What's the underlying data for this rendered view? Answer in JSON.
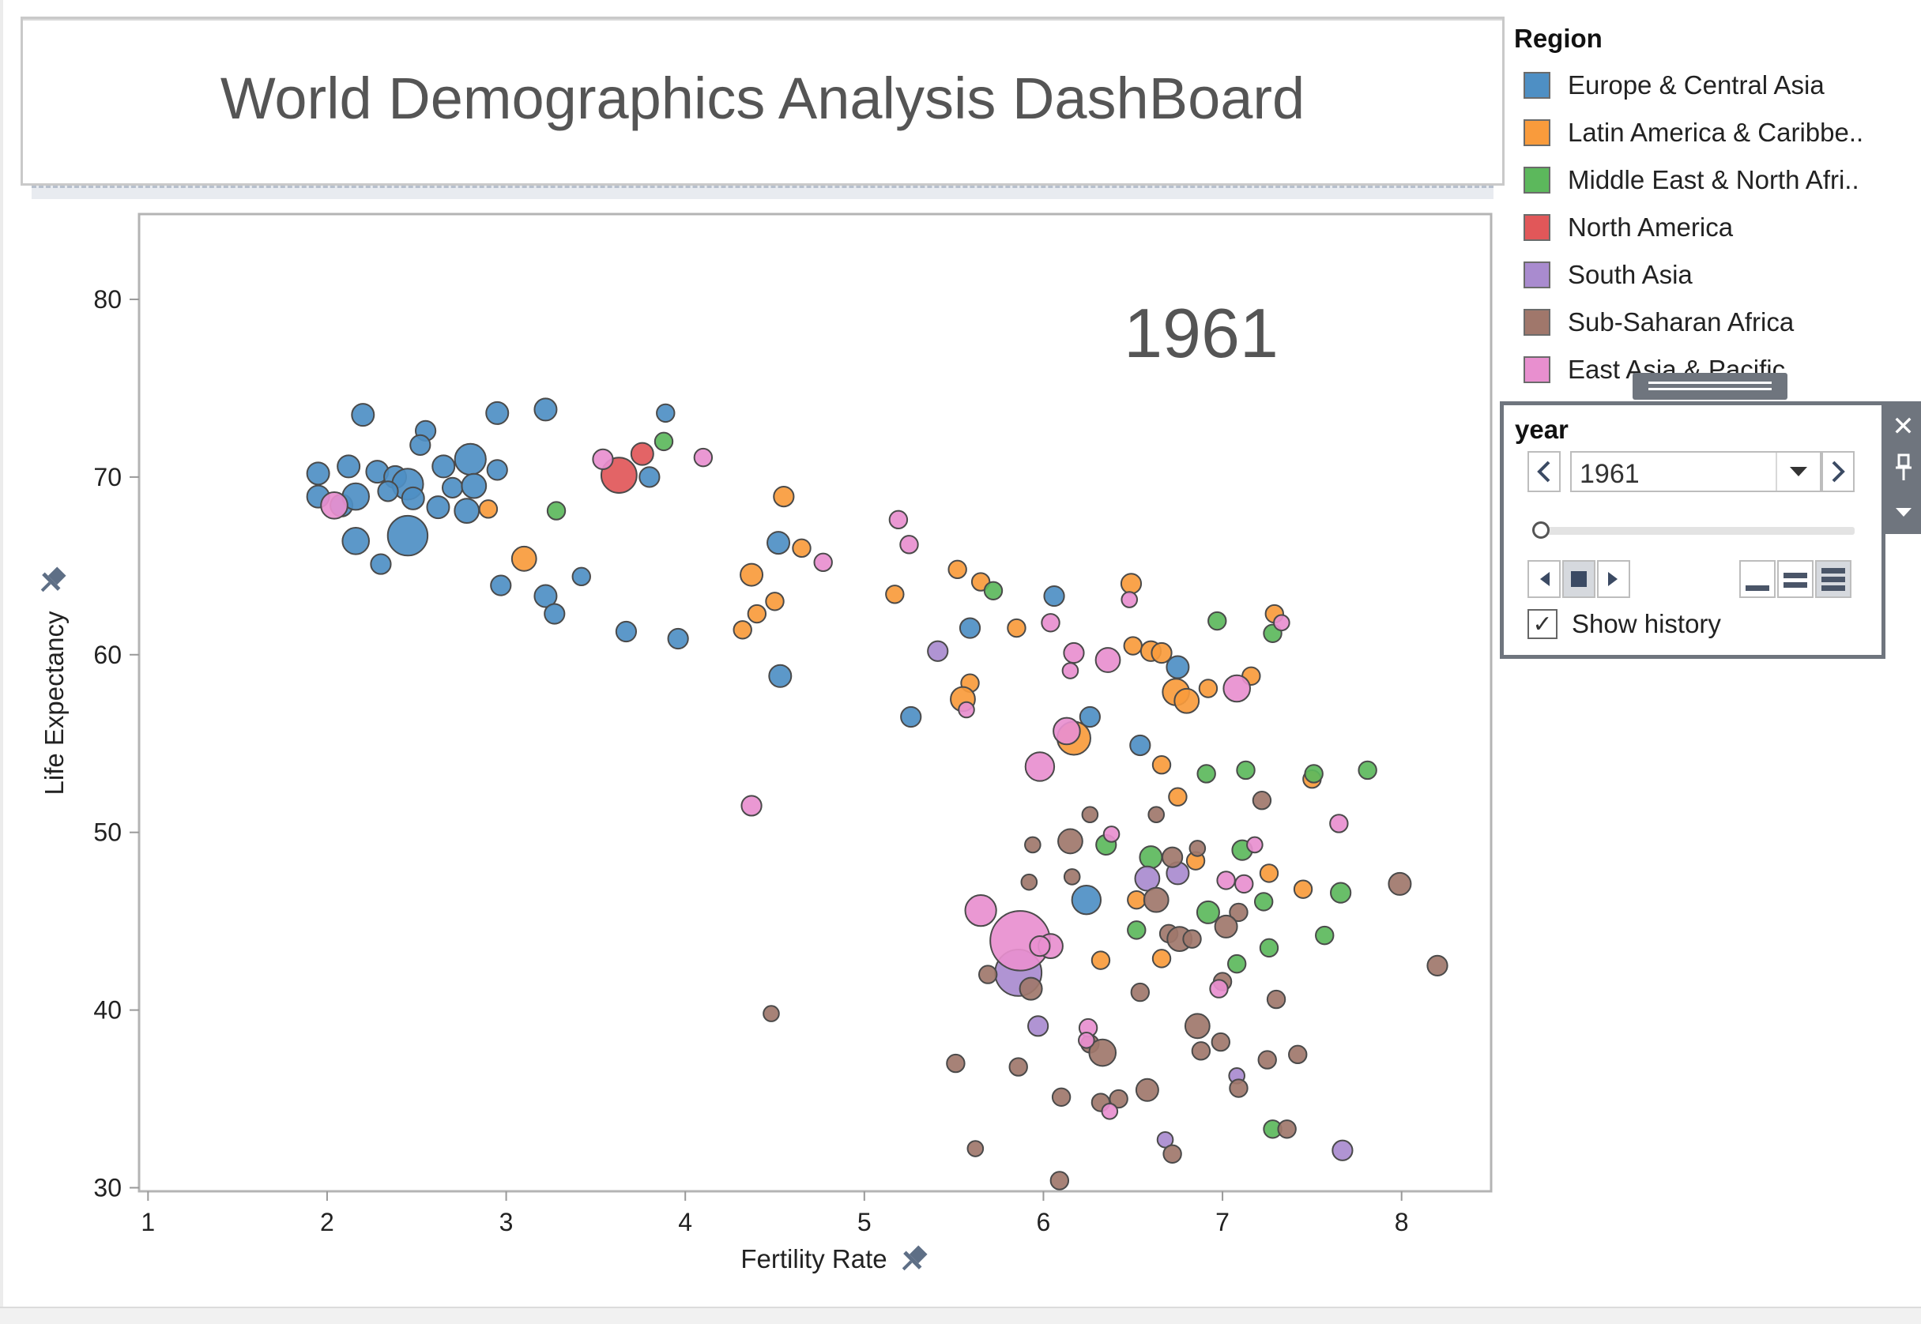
{
  "dashboard": {
    "title": "World Demographics Analysis DashBoard"
  },
  "legend": {
    "title": "Region",
    "items": [
      {
        "label": "Europe & Central Asia",
        "color": "#4e8fc4"
      },
      {
        "label": "Latin America & Caribbe..",
        "color": "#f99b3c"
      },
      {
        "label": "Middle East & North Afri..",
        "color": "#5cb85c"
      },
      {
        "label": "North America",
        "color": "#e15759"
      },
      {
        "label": "South Asia",
        "color": "#a98bcf"
      },
      {
        "label": "Sub-Saharan Africa",
        "color": "#a0776b"
      },
      {
        "label": "East Asia & Pacific",
        "color": "#e88fcf"
      }
    ]
  },
  "year_filter": {
    "title": "year",
    "selected": "1961",
    "prev_icon": "chevron-left-icon",
    "next_icon": "chevron-right-icon",
    "slider_fraction": 0.0,
    "show_history_label": "Show history",
    "show_history_checked": true
  },
  "chart_data": {
    "type": "scatter",
    "title": "",
    "year_label": "1961",
    "xlabel": "Fertility Rate",
    "ylabel": "Life Expectancy",
    "xlim": [
      0.95,
      8.5
    ],
    "ylim": [
      29.8,
      84.8
    ],
    "x_ticks": [
      1,
      2,
      3,
      4,
      5,
      6,
      7,
      8
    ],
    "y_ticks": [
      30,
      40,
      50,
      60,
      70,
      80
    ],
    "grid": false,
    "size_encoding": "population",
    "series": [
      {
        "name": "Europe & Central Asia",
        "points": [
          [
            2.2,
            73.5,
            1
          ],
          [
            2.95,
            73.6,
            1
          ],
          [
            3.22,
            73.8,
            1
          ],
          [
            3.89,
            73.6,
            0.8
          ],
          [
            2.55,
            72.6,
            0.9
          ],
          [
            2.52,
            71.8,
            0.9
          ],
          [
            1.95,
            70.2,
            1
          ],
          [
            2.12,
            70.6,
            1
          ],
          [
            2.28,
            70.3,
            1
          ],
          [
            2.8,
            71,
            1.4
          ],
          [
            2.65,
            70.6,
            1
          ],
          [
            2.95,
            70.4,
            0.9
          ],
          [
            2.38,
            70,
            1
          ],
          [
            2.45,
            69.6,
            1.4
          ],
          [
            2.7,
            69.4,
            0.9
          ],
          [
            2.82,
            69.5,
            1.1
          ],
          [
            3.8,
            70,
            0.9
          ],
          [
            1.95,
            68.9,
            1
          ],
          [
            2.08,
            68.4,
            1
          ],
          [
            2.16,
            68.9,
            1.2
          ],
          [
            2.34,
            69.2,
            0.9
          ],
          [
            2.48,
            68.8,
            1
          ],
          [
            2.62,
            68.3,
            1
          ],
          [
            2.78,
            68.1,
            1.1
          ],
          [
            2.16,
            66.4,
            1.2
          ],
          [
            2.45,
            66.7,
            1.8
          ],
          [
            2.3,
            65.1,
            0.9
          ],
          [
            2.97,
            63.9,
            0.9
          ],
          [
            3.22,
            63.3,
            1
          ],
          [
            3.42,
            64.4,
            0.8
          ],
          [
            3.27,
            62.3,
            0.9
          ],
          [
            3.67,
            61.3,
            0.9
          ],
          [
            3.96,
            60.9,
            0.9
          ],
          [
            4.52,
            66.3,
            1
          ],
          [
            4.53,
            58.8,
            1
          ],
          [
            5.26,
            56.5,
            0.9
          ],
          [
            5.59,
            61.5,
            0.9
          ],
          [
            6.06,
            63.3,
            0.9
          ],
          [
            6.75,
            59.3,
            1
          ],
          [
            6.26,
            56.5,
            0.9
          ],
          [
            6.54,
            54.9,
            0.9
          ],
          [
            6.24,
            46.2,
            1.3
          ]
        ]
      },
      {
        "name": "Latin America & Caribbean",
        "points": [
          [
            2.9,
            68.2,
            0.8
          ],
          [
            3.1,
            65.4,
            1.1
          ],
          [
            4.37,
            64.5,
            1
          ],
          [
            4.55,
            68.9,
            0.9
          ],
          [
            4.65,
            66,
            0.8
          ],
          [
            4.5,
            63,
            0.8
          ],
          [
            4.4,
            62.3,
            0.8
          ],
          [
            4.32,
            61.4,
            0.8
          ],
          [
            5.17,
            63.4,
            0.8
          ],
          [
            5.52,
            64.8,
            0.8
          ],
          [
            5.65,
            64.1,
            0.8
          ],
          [
            5.85,
            61.5,
            0.8
          ],
          [
            5.59,
            58.4,
            0.8
          ],
          [
            5.55,
            57.5,
            1.1
          ],
          [
            6.49,
            64,
            0.9
          ],
          [
            6.5,
            60.5,
            0.8
          ],
          [
            6.6,
            60.2,
            0.9
          ],
          [
            6.66,
            60.1,
            0.9
          ],
          [
            6.74,
            57.9,
            1.2
          ],
          [
            6.8,
            57.4,
            1.1
          ],
          [
            6.92,
            58.1,
            0.8
          ],
          [
            7.16,
            58.8,
            0.8
          ],
          [
            7.29,
            62.3,
            0.8
          ],
          [
            6.17,
            55.3,
            1.5
          ],
          [
            6.66,
            53.8,
            0.8
          ],
          [
            6.75,
            52,
            0.8
          ],
          [
            7.5,
            53,
            0.8
          ],
          [
            6.85,
            48.4,
            0.8
          ],
          [
            7.26,
            47.7,
            0.8
          ],
          [
            7.45,
            46.8,
            0.8
          ],
          [
            6.52,
            46.2,
            0.8
          ],
          [
            6.32,
            42.8,
            0.8
          ],
          [
            6.66,
            42.9,
            0.8
          ]
        ]
      },
      {
        "name": "Middle East & North Africa",
        "points": [
          [
            3.28,
            68.1,
            0.8
          ],
          [
            3.88,
            72,
            0.8
          ],
          [
            5.72,
            63.6,
            0.8
          ],
          [
            6.97,
            61.9,
            0.8
          ],
          [
            7.28,
            61.2,
            0.8
          ],
          [
            6.91,
            53.3,
            0.8
          ],
          [
            7.13,
            53.5,
            0.8
          ],
          [
            7.51,
            53.3,
            0.8
          ],
          [
            7.81,
            53.5,
            0.8
          ],
          [
            6.35,
            49.3,
            0.9
          ],
          [
            6.6,
            48.6,
            1
          ],
          [
            7.11,
            49,
            0.9
          ],
          [
            6.92,
            45.5,
            1
          ],
          [
            7.23,
            46.1,
            0.8
          ],
          [
            6.52,
            44.5,
            0.8
          ],
          [
            7.66,
            46.6,
            0.9
          ],
          [
            7.26,
            43.5,
            0.8
          ],
          [
            7.57,
            44.2,
            0.8
          ],
          [
            7.08,
            42.6,
            0.8
          ],
          [
            7.28,
            33.3,
            0.8
          ]
        ]
      },
      {
        "name": "North America",
        "points": [
          [
            3.63,
            70.1,
            1.6
          ],
          [
            3.76,
            71.3,
            1
          ]
        ]
      },
      {
        "name": "South Asia",
        "points": [
          [
            5.41,
            60.2,
            0.9
          ],
          [
            6.58,
            47.4,
            1.1
          ],
          [
            6.75,
            47.7,
            1
          ],
          [
            5.86,
            42.1,
            2.1
          ],
          [
            5.97,
            39.1,
            0.9
          ],
          [
            7.08,
            36.3,
            0.7
          ],
          [
            6.68,
            32.7,
            0.7
          ],
          [
            7.67,
            32.1,
            0.9
          ]
        ]
      },
      {
        "name": "Sub-Saharan Africa",
        "points": [
          [
            4.48,
            39.8,
            0.7
          ],
          [
            6.26,
            51,
            0.7
          ],
          [
            6.63,
            51,
            0.7
          ],
          [
            7.22,
            51.8,
            0.8
          ],
          [
            5.94,
            49.3,
            0.7
          ],
          [
            6.15,
            49.5,
            1.1
          ],
          [
            6.86,
            49.1,
            0.7
          ],
          [
            6.72,
            48.6,
            0.9
          ],
          [
            5.92,
            47.2,
            0.7
          ],
          [
            6.16,
            47.5,
            0.7
          ],
          [
            6.63,
            46.2,
            1.1
          ],
          [
            7.09,
            45.5,
            0.8
          ],
          [
            6.7,
            44.3,
            0.8
          ],
          [
            6.76,
            44,
            1.1
          ],
          [
            6.83,
            44,
            0.8
          ],
          [
            7.02,
            44.7,
            1
          ],
          [
            5.69,
            42,
            0.8
          ],
          [
            5.93,
            41.2,
            1
          ],
          [
            6.54,
            41,
            0.8
          ],
          [
            7,
            41.6,
            0.8
          ],
          [
            7.3,
            40.6,
            0.8
          ],
          [
            6.86,
            39.1,
            1.1
          ],
          [
            6.26,
            38.1,
            0.8
          ],
          [
            6.33,
            37.6,
            1.2
          ],
          [
            6.88,
            37.7,
            0.8
          ],
          [
            6.99,
            38.2,
            0.8
          ],
          [
            7.25,
            37.2,
            0.8
          ],
          [
            7.42,
            37.5,
            0.8
          ],
          [
            5.51,
            37,
            0.8
          ],
          [
            5.86,
            36.8,
            0.8
          ],
          [
            6.1,
            35.1,
            0.8
          ],
          [
            6.32,
            34.8,
            0.8
          ],
          [
            6.42,
            35,
            0.8
          ],
          [
            6.58,
            35.5,
            1
          ],
          [
            7.09,
            35.6,
            0.8
          ],
          [
            7.36,
            33.3,
            0.8
          ],
          [
            5.62,
            32.2,
            0.7
          ],
          [
            6.72,
            31.9,
            0.8
          ],
          [
            6.09,
            30.4,
            0.8
          ],
          [
            7.99,
            47.1,
            1
          ],
          [
            8.2,
            42.5,
            0.9
          ]
        ]
      },
      {
        "name": "East Asia & Pacific",
        "points": [
          [
            2.04,
            68.4,
            1.2
          ],
          [
            3.54,
            71,
            0.9
          ],
          [
            4.1,
            71.1,
            0.8
          ],
          [
            5.19,
            67.6,
            0.8
          ],
          [
            5.25,
            66.2,
            0.8
          ],
          [
            4.77,
            65.2,
            0.8
          ],
          [
            6.04,
            61.8,
            0.8
          ],
          [
            6.17,
            60.1,
            0.9
          ],
          [
            6.36,
            59.7,
            1.1
          ],
          [
            6.48,
            63.1,
            0.7
          ],
          [
            7.08,
            58.1,
            1.2
          ],
          [
            7.33,
            61.8,
            0.7
          ],
          [
            5.57,
            56.9,
            0.7
          ],
          [
            6.15,
            59.1,
            0.7
          ],
          [
            6.13,
            55.7,
            1.2
          ],
          [
            5.98,
            53.7,
            1.3
          ],
          [
            4.37,
            51.5,
            0.9
          ],
          [
            7.65,
            50.5,
            0.8
          ],
          [
            6.38,
            49.9,
            0.7
          ],
          [
            7.18,
            49.3,
            0.7
          ],
          [
            7.02,
            47.3,
            0.8
          ],
          [
            7.12,
            47.1,
            0.8
          ],
          [
            5.65,
            45.6,
            1.4
          ],
          [
            5.87,
            43.9,
            2.7
          ],
          [
            6.04,
            43.6,
            1.1
          ],
          [
            5.98,
            43.6,
            0.9
          ],
          [
            6.25,
            39,
            0.8
          ],
          [
            6.98,
            41.2,
            0.8
          ],
          [
            6.37,
            34.3,
            0.7
          ],
          [
            6.24,
            38.3,
            0.7
          ]
        ]
      }
    ]
  }
}
